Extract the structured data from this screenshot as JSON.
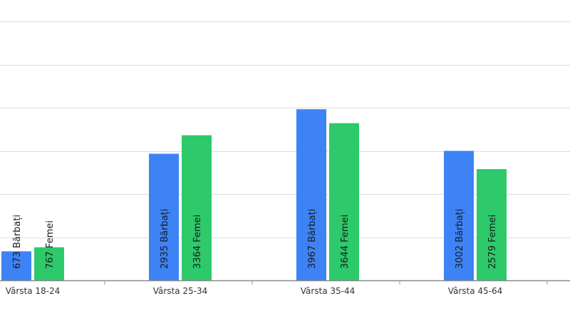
{
  "chart_data": {
    "type": "bar",
    "categories": [
      "Vârsta 18-24",
      "Vârsta 25-34",
      "Vârsta 35-44",
      "Vârsta 45-64"
    ],
    "series": [
      {
        "name": "Bărbați",
        "values": [
          673,
          2935,
          3967,
          3002
        ]
      },
      {
        "name": "Femei",
        "values": [
          767,
          3364,
          3644,
          2579
        ]
      }
    ],
    "data_labels": [
      [
        "673 Bărbați",
        "767 Femei"
      ],
      [
        "2935 Bărbați",
        "3364 Femei"
      ],
      [
        "3967 Bărbați",
        "3644 Femei"
      ],
      [
        "3002 Bărbați",
        "2579 Femei"
      ]
    ],
    "ylim": [
      0,
      6500
    ],
    "y_gridlines": [
      1000,
      2000,
      3000,
      4000,
      5000,
      6000
    ],
    "grid": true,
    "legend": "none",
    "colors": {
      "Bărbați": "#3d83f5",
      "Femei": "#2dc96a",
      "grid": "#dcdcdc",
      "axis": "#8a8a8a"
    }
  }
}
